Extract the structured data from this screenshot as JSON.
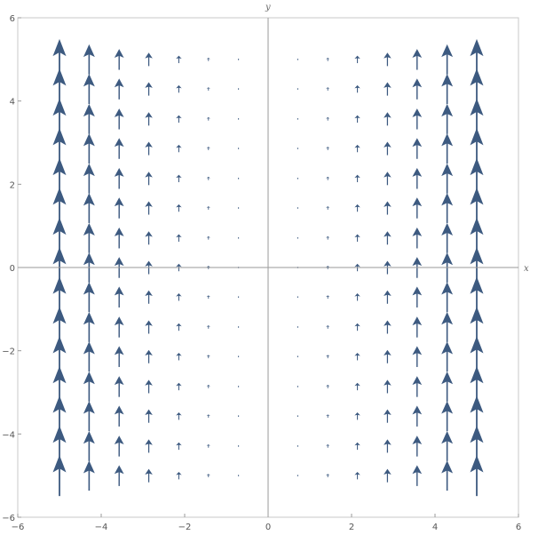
{
  "chart_data": {
    "type": "vector_field",
    "xlabel": "x",
    "ylabel": "y",
    "xlim": [
      -6,
      6
    ],
    "ylim": [
      -6,
      6
    ],
    "x_ticks": [
      -6,
      -4,
      -2,
      0,
      2,
      4,
      6
    ],
    "y_ticks": [
      -6,
      -4,
      -2,
      0,
      2,
      4,
      6
    ],
    "x_tick_labels": [
      "−6",
      "−4",
      "−2",
      "0",
      "2",
      "4",
      "6"
    ],
    "y_tick_labels": [
      "−6",
      "−4",
      "−2",
      "0",
      "2",
      "4",
      "6"
    ],
    "field": "(0, x^2)",
    "grid_x": [
      -5.0,
      -4.29,
      -3.57,
      -2.86,
      -2.14,
      -1.43,
      -0.71,
      0.71,
      1.43,
      2.14,
      2.86,
      3.57,
      4.29,
      5.0
    ],
    "grid_y": [
      -5.0,
      -4.29,
      -3.57,
      -2.86,
      -2.14,
      -1.43,
      -0.71,
      0.0,
      0.71,
      1.43,
      2.14,
      2.86,
      3.57,
      4.29,
      5.0
    ],
    "arrow_color": "#3d5a80",
    "grid": false
  }
}
